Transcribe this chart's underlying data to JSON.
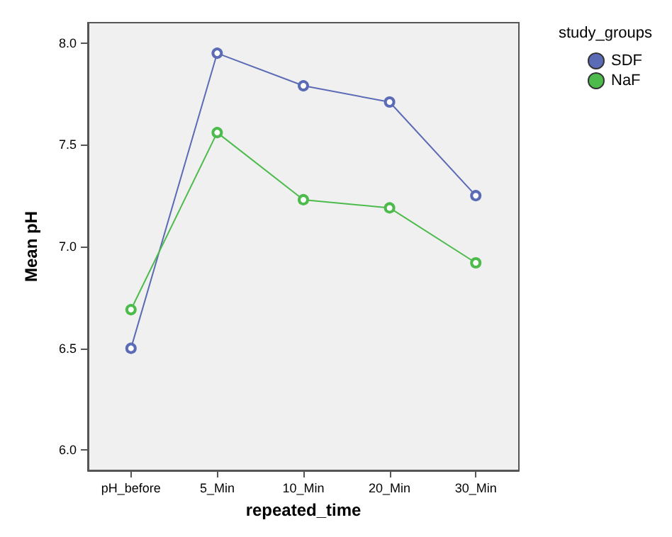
{
  "chart_data": {
    "type": "line",
    "xlabel": "repeated_time",
    "ylabel": "Mean pH",
    "legend_title": "study_groups",
    "categories": [
      "pH_before",
      "5_Min",
      "10_Min",
      "20_Min",
      "30_Min"
    ],
    "series": [
      {
        "name": "SDF",
        "color": "#5b6bb5",
        "values": [
          6.5,
          7.95,
          7.79,
          7.71,
          7.25
        ]
      },
      {
        "name": "NaF",
        "color": "#4cbb4c",
        "values": [
          6.69,
          7.56,
          7.23,
          7.19,
          6.92
        ]
      }
    ],
    "ylim": [
      5.9,
      8.1
    ],
    "yticks": [
      {
        "value": 6,
        "label": "6.0"
      },
      6.5,
      {
        "value": 7,
        "label": "7.0"
      },
      7.5,
      {
        "value": 8,
        "label": "8.0"
      }
    ],
    "grid": false,
    "legend": "top right",
    "marker": "circle",
    "line_style": "solid"
  }
}
